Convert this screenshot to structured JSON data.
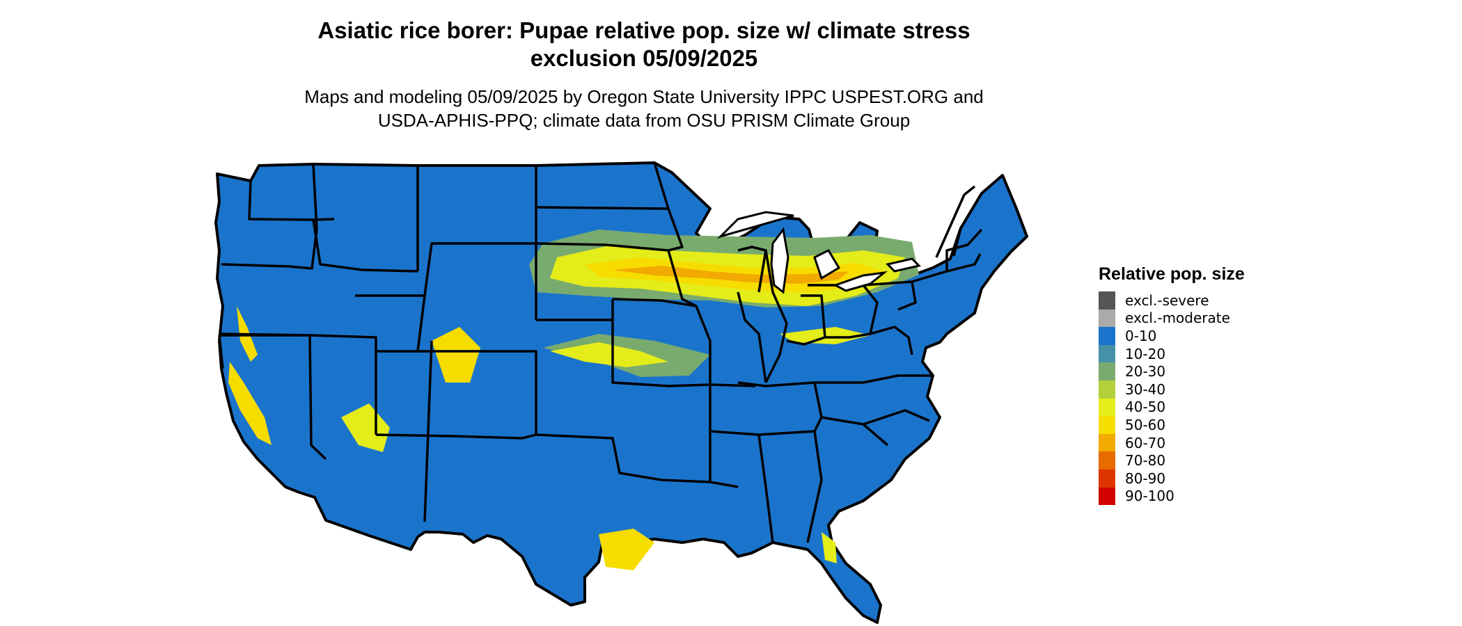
{
  "title": {
    "line1": "Asiatic rice borer: Pupae relative pop. size w/ climate stress",
    "line2": "exclusion 05/09/2025"
  },
  "subtitle": {
    "line1": "Maps and modeling 05/09/2025 by Oregon State University IPPC USPEST.ORG and",
    "line2": "USDA-APHIS-PPQ; climate data from OSU PRISM Climate Group"
  },
  "legend": {
    "title": "Relative pop. size",
    "items": [
      {
        "label": "excl.-severe",
        "color": "#555555"
      },
      {
        "label": "excl.-moderate",
        "color": "#aaaaaa"
      },
      {
        "label": "0-10",
        "color": "#1b74cc"
      },
      {
        "label": "10-20",
        "color": "#4690a8"
      },
      {
        "label": "20-30",
        "color": "#7aab6e"
      },
      {
        "label": "30-40",
        "color": "#b4cf3c"
      },
      {
        "label": "40-50",
        "color": "#e4ec19"
      },
      {
        "label": "50-60",
        "color": "#f7dc00"
      },
      {
        "label": "60-70",
        "color": "#f2a900"
      },
      {
        "label": "70-80",
        "color": "#e86b00"
      },
      {
        "label": "80-90",
        "color": "#dc3500"
      },
      {
        "label": "90-100",
        "color": "#d20000"
      }
    ]
  }
}
